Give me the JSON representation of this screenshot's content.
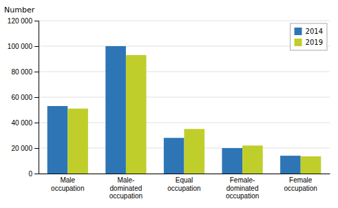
{
  "chart_data": {
    "type": "bar",
    "ylabel": "Number",
    "categories": [
      "Male\noccupation",
      "Male-\ndominated\noccupation",
      "Equal\noccupation",
      "Female-\ndominated\noccupation",
      "Female\noccupation"
    ],
    "series": [
      {
        "name": "2014",
        "color": "#2E75B6",
        "values": [
          53000,
          100000,
          28000,
          20000,
          14000
        ]
      },
      {
        "name": "2019",
        "color": "#BFCE2B",
        "values": [
          51000,
          93000,
          35000,
          22000,
          13500
        ]
      }
    ],
    "ylim": [
      0,
      120000
    ],
    "yticks": [
      0,
      {
        "value": 20000,
        "label": "20 000"
      },
      {
        "value": 40000,
        "label": "40 000"
      },
      {
        "value": 60000,
        "label": "60 000"
      },
      {
        "value": 80000,
        "label": "80 000"
      },
      {
        "value": 100000,
        "label": "100 000"
      },
      {
        "value": 120000,
        "label": "120 000"
      }
    ],
    "grid": true,
    "legend": "upper-right"
  }
}
